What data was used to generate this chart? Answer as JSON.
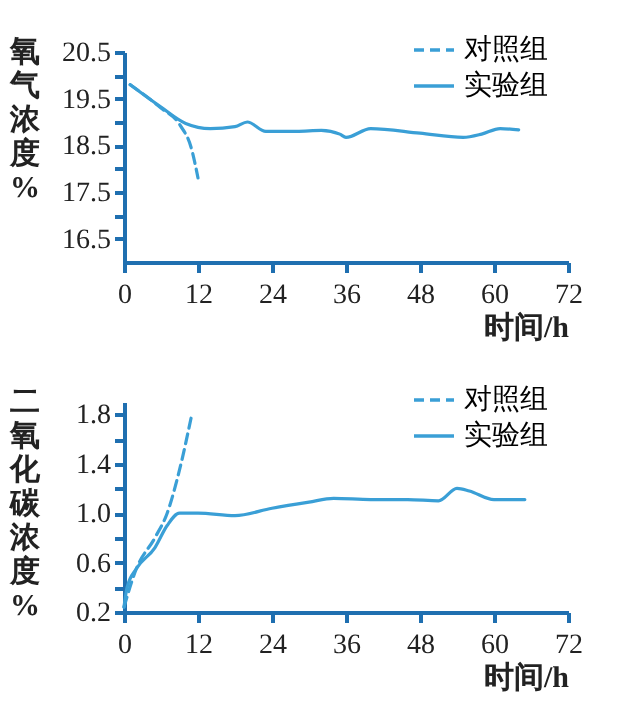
{
  "chart_data": [
    {
      "type": "line",
      "ylabel": "氧气浓度%",
      "xlabel": "时间/h",
      "xlim": [
        0,
        72
      ],
      "xticks": [
        0,
        12,
        24,
        36,
        48,
        60,
        72
      ],
      "ylim": [
        16,
        20.5
      ],
      "yticks": [
        {
          "value": 16.5,
          "label": "16.5"
        },
        {
          "value": 17,
          "label": null
        },
        {
          "value": 17.5,
          "label": "17.5"
        },
        {
          "value": 18,
          "label": null
        },
        {
          "value": 18.5,
          "label": "18.5"
        },
        {
          "value": 19,
          "label": null
        },
        {
          "value": 19.5,
          "label": "19.5"
        },
        {
          "value": 20,
          "label": null
        },
        {
          "value": 20.5,
          "label": "20.5"
        }
      ],
      "legend": "top right",
      "grid": false,
      "series": [
        {
          "name": "对照组",
          "color": "#3a9fd6",
          "line_style": "dashed",
          "x": [
            1,
            6,
            9,
            11,
            12
          ],
          "values": [
            19.8,
            19.3,
            18.95,
            18.4,
            17.8
          ]
        },
        {
          "name": "实验组",
          "color": "#3a9fd6",
          "line_style": "solid",
          "x": [
            1,
            6,
            10,
            14,
            18,
            20,
            23,
            28,
            32,
            35,
            36,
            40,
            48,
            55,
            58,
            61,
            64
          ],
          "values": [
            19.8,
            19.32,
            18.97,
            18.86,
            18.9,
            19.0,
            18.8,
            18.8,
            18.82,
            18.74,
            18.67,
            18.86,
            18.76,
            18.67,
            18.74,
            18.86,
            18.83
          ]
        }
      ]
    },
    {
      "type": "line",
      "ylabel": "二氧化碳浓度%",
      "xlabel": "时间/h",
      "xlim": [
        0,
        72
      ],
      "xticks": [
        0,
        12,
        24,
        36,
        48,
        60,
        72
      ],
      "ylim": [
        0.2,
        1.9
      ],
      "yticks": [
        {
          "value": 0.2,
          "label": "0.2"
        },
        {
          "value": 0.4,
          "label": null
        },
        {
          "value": 0.6,
          "label": "0.6"
        },
        {
          "value": 0.8,
          "label": null
        },
        {
          "value": 1.0,
          "label": "1.0"
        },
        {
          "value": 1.2,
          "label": null
        },
        {
          "value": 1.4,
          "label": "1.4"
        },
        {
          "value": 1.6,
          "label": null
        },
        {
          "value": 1.8,
          "label": "1.8"
        }
      ],
      "legend": "top right",
      "grid": false,
      "series": [
        {
          "name": "对照组",
          "color": "#3a9fd6",
          "line_style": "dashed",
          "x": [
            0,
            2,
            5,
            7,
            9,
            11
          ],
          "values": [
            0.24,
            0.55,
            0.8,
            1.0,
            1.35,
            1.8
          ]
        },
        {
          "name": "实验组",
          "color": "#3a9fd6",
          "line_style": "solid",
          "x": [
            0,
            0.5,
            2,
            5,
            7,
            9,
            12,
            18,
            24,
            30,
            34,
            40,
            46,
            51,
            54,
            56,
            60,
            65
          ],
          "values": [
            0.24,
            0.4,
            0.55,
            0.72,
            0.9,
            1.0,
            1.0,
            0.98,
            1.04,
            1.09,
            1.12,
            1.11,
            1.11,
            1.1,
            1.2,
            1.18,
            1.11,
            1.11
          ]
        }
      ]
    }
  ]
}
